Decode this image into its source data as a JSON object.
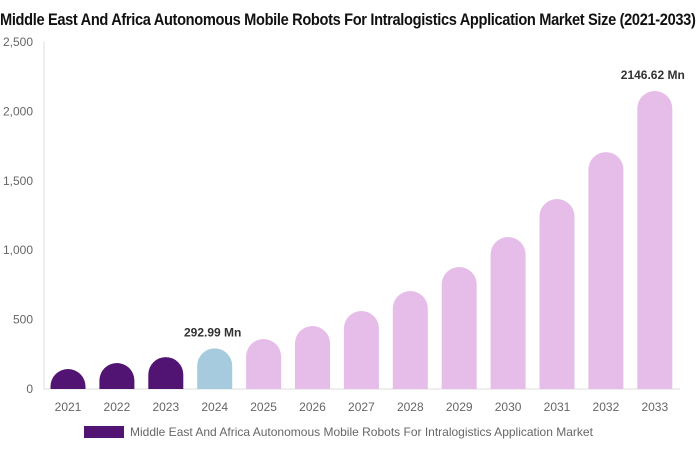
{
  "chart_data": {
    "type": "bar",
    "title": "Middle East And Africa Autonomous Mobile Robots For Intralogistics Application Market Size (2021-2033)",
    "categories": [
      "2021",
      "2022",
      "2023",
      "2024",
      "2025",
      "2026",
      "2027",
      "2028",
      "2029",
      "2030",
      "2031",
      "2032",
      "2033"
    ],
    "series": [
      {
        "name": "Middle East And Africa Autonomous Mobile Robots For Intralogistics Application Market",
        "values": [
          144,
          187,
          230,
          292.99,
          360,
          454,
          562,
          706,
          879,
          1095,
          1369,
          1707,
          2146.62
        ]
      }
    ],
    "data_labels": [
      {
        "category": "2024",
        "text": "292.99 Mn"
      },
      {
        "category": "2033",
        "text": "2146.62 Mn"
      }
    ],
    "yticks": [
      "0",
      "500",
      "1,000",
      "1,500",
      "2,000",
      "2,500"
    ],
    "ylim": [
      0,
      2500
    ],
    "grid": false,
    "legend_position": "bottom",
    "colors": {
      "historical": "#521472",
      "current": "#a6cbdf",
      "forecast": "#e6bde8",
      "legend": "#521472"
    }
  }
}
